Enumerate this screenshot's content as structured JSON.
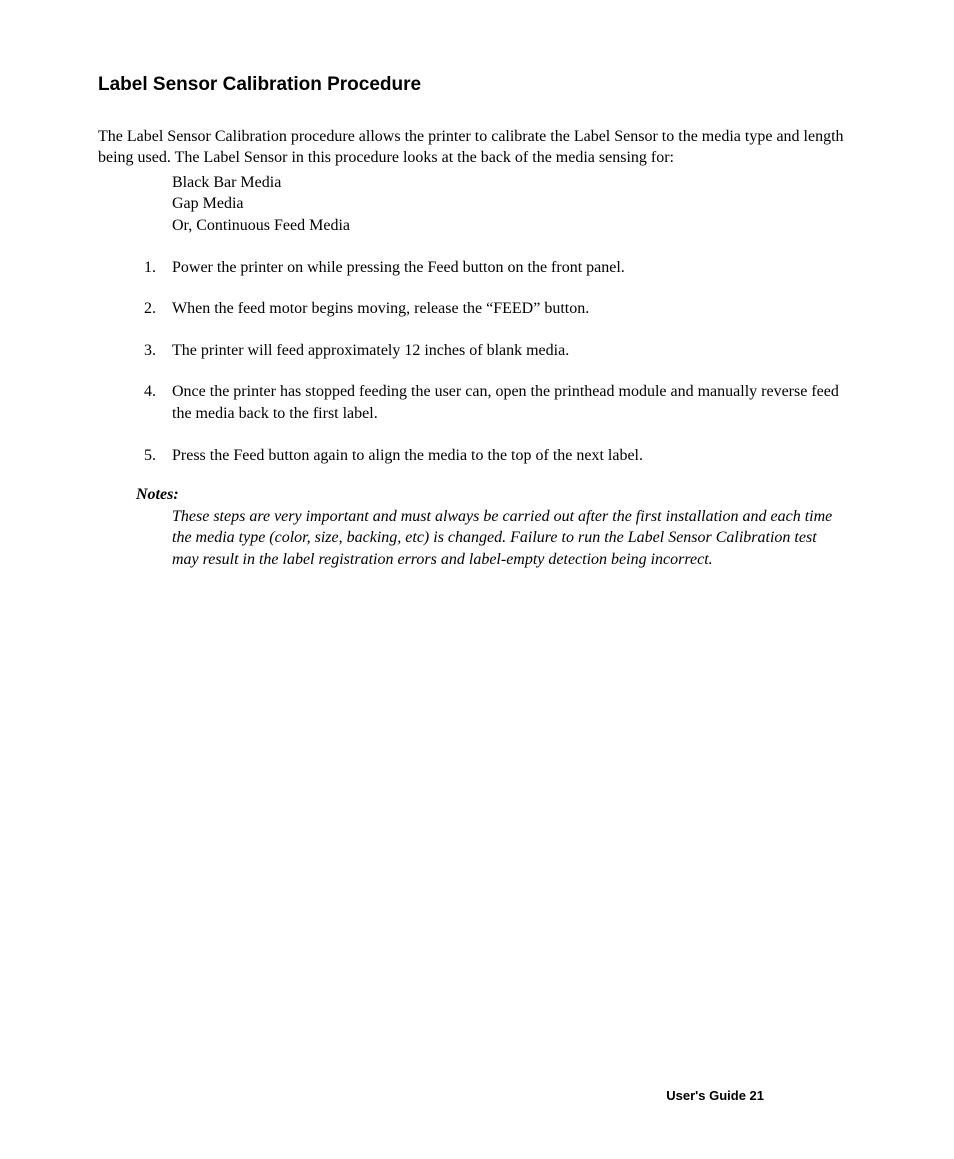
{
  "section_title": "Label Sensor Calibration Procedure",
  "intro_paragraph": "The Label Sensor Calibration procedure allows the printer to calibrate the Label Sensor to the media type and length being used.  The Label Sensor in this procedure looks at the back of the media sensing for:",
  "media_list": [
    "Black Bar Media",
    "Gap Media",
    "Or, Continuous Feed Media"
  ],
  "steps": [
    "Power the printer on while pressing the Feed button on the front panel.",
    "When the feed motor begins moving, release the “FEED” button.",
    "The printer will feed approximately 12 inches of blank media.",
    "Once the printer has stopped feeding the user can, open the printhead module and manually reverse feed the media back to the first label.",
    "Press the Feed button again to align the media to the top of the next label."
  ],
  "notes_heading": "Notes:",
  "notes_body": "These steps are very important and must always be carried out after the first installation and each time the media type (color, size, backing, etc) is changed.  Failure to run the Label Sensor Calibration test may result in the label registration errors and label-empty detection being incorrect.",
  "footer_text": "User's Guide 21"
}
